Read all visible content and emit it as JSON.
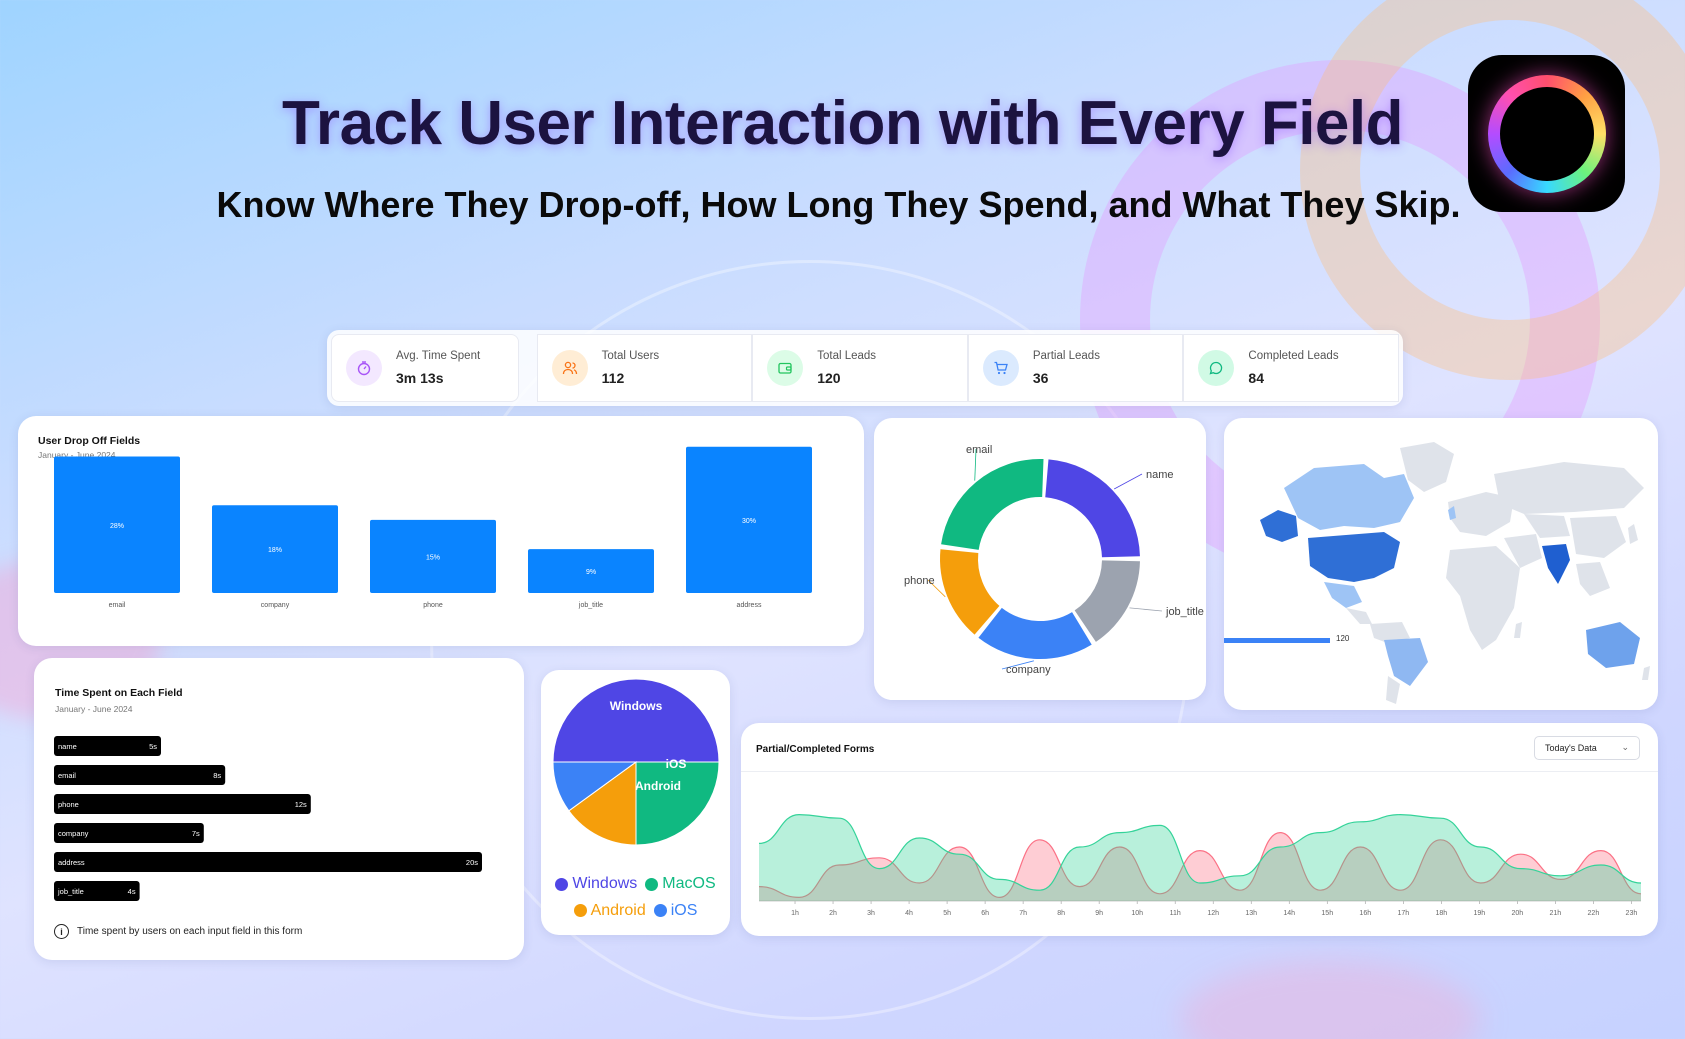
{
  "hero": {
    "headline": "Track User Interaction with Every Field",
    "subheadline": "Know Where They Drop-off, How Long They Spend, and What They Skip."
  },
  "stats": [
    {
      "label": "Avg. Time Spent",
      "value": "3m 13s",
      "icon": "timer-icon",
      "color": "#a855f7",
      "bg": "#f3e8ff"
    },
    {
      "label": "Total Users",
      "value": "112",
      "icon": "users-icon",
      "color": "#f97316",
      "bg": "#ffedd5"
    },
    {
      "label": "Total Leads",
      "value": "120",
      "icon": "wallet-icon",
      "color": "#22c55e",
      "bg": "#dcfce7"
    },
    {
      "label": "Partial Leads",
      "value": "36",
      "icon": "cart-icon",
      "color": "#3b82f6",
      "bg": "#dbeafe"
    },
    {
      "label": "Completed Leads",
      "value": "84",
      "icon": "chat-icon",
      "color": "#10b981",
      "bg": "#d1fae5"
    }
  ],
  "dropoff": {
    "title": "User Drop Off Fields",
    "subtitle": "January - June 2024"
  },
  "timespent": {
    "title": "Time Spent on Each Field",
    "subtitle": "January - June 2024",
    "note": "Time spent by users on each input field in this form"
  },
  "forms": {
    "title": "Partial/Completed Forms",
    "select_value": "Today's Data"
  },
  "map": {
    "scale_max": "120"
  },
  "chart_data": [
    {
      "type": "bar",
      "categories": [
        "email",
        "company",
        "phone",
        "job_title",
        "address"
      ],
      "values": [
        28,
        18,
        15,
        9,
        30
      ],
      "labels": [
        "28%",
        "18%",
        "15%",
        "9%",
        "30%"
      ],
      "ylim": [
        0,
        32
      ],
      "color": "#0a84ff"
    },
    {
      "type": "pie",
      "style": "donut",
      "categories": [
        "name",
        "job_title",
        "company",
        "phone",
        "email"
      ],
      "values": [
        24,
        16,
        20,
        16,
        24
      ],
      "colors": [
        "#4f46e5",
        "#9ca3af",
        "#3b82f6",
        "#f59e0b",
        "#10b981"
      ]
    },
    {
      "type": "bar",
      "orientation": "horizontal",
      "categories": [
        "name",
        "email",
        "phone",
        "company",
        "address",
        "job_title"
      ],
      "values": [
        5,
        8,
        12,
        7,
        20,
        4
      ],
      "labels": [
        "5s",
        "8s",
        "12s",
        "7s",
        "20s",
        "4s"
      ],
      "xlim": [
        0,
        20
      ],
      "color": "#000000"
    },
    {
      "type": "pie",
      "categories": [
        "Windows",
        "MacOS",
        "Android",
        "iOS"
      ],
      "values": [
        50,
        25,
        15,
        10
      ],
      "colors": [
        "#4f46e5",
        "#10b981",
        "#f59e0b",
        "#3b82f6"
      ],
      "legend": "bottom"
    },
    {
      "type": "area",
      "x": [
        "1h",
        "2h",
        "3h",
        "4h",
        "5h",
        "6h",
        "7h",
        "8h",
        "9h",
        "10h",
        "11h",
        "12h",
        "13h",
        "14h",
        "15h",
        "16h",
        "17h",
        "18h",
        "19h",
        "20h",
        "21h",
        "22h",
        "23h"
      ],
      "series": [
        {
          "color": "#34d399",
          "values": [
            32,
            48,
            46,
            18,
            35,
            26,
            12,
            6,
            30,
            38,
            42,
            10,
            14,
            30,
            38,
            44,
            48,
            46,
            30,
            18,
            14,
            20,
            10
          ]
        },
        {
          "color": "#fb7185",
          "values": [
            8,
            2,
            20,
            24,
            10,
            30,
            2,
            34,
            8,
            30,
            4,
            28,
            6,
            38,
            6,
            30,
            6,
            34,
            10,
            26,
            12,
            28,
            4
          ]
        }
      ]
    },
    {
      "type": "heatmap",
      "subtype": "choropleth-world",
      "highlighted": [
        "India",
        "United States",
        "Canada",
        "Alaska",
        "Mexico",
        "Brazil",
        "Australia"
      ],
      "scale_color": "#3b82f6"
    }
  ]
}
